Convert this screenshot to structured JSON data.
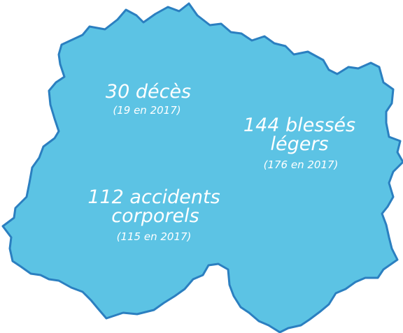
{
  "labels": [
    {
      "main": [
        "30 décès"
      ],
      "sub": "(19 en 2017)"
    },
    {
      "main": [
        "144 blessés",
        "légers"
      ],
      "sub": "(176 en 2017)"
    },
    {
      "main": [
        "112 accidents",
        "corporels"
      ],
      "sub": "(115 en 2017)"
    }
  ]
}
